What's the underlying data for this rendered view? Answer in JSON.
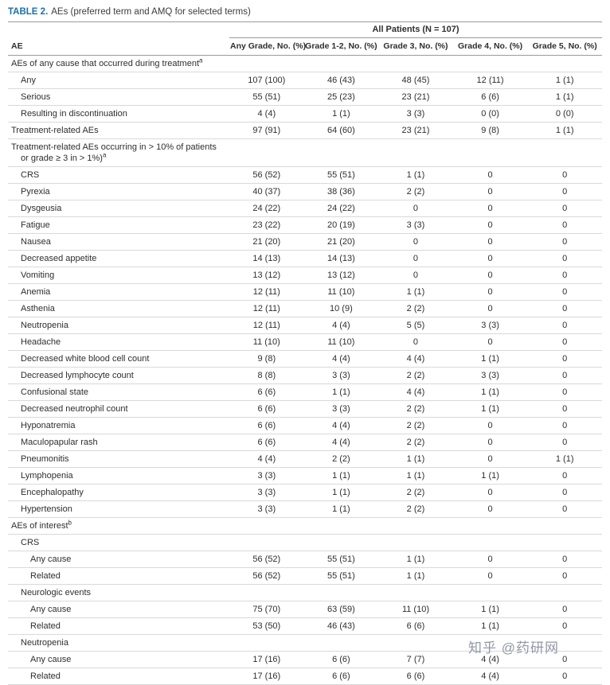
{
  "title": {
    "label": "TABLE 2.",
    "caption": "AEs (preferred term and AMQ for selected terms)"
  },
  "watermark": "知乎 @药研网",
  "table": {
    "group_header": "All Patients (N = 107)",
    "columns": [
      "AE",
      "Any Grade, No. (%)",
      "Grade 1-2, No. (%)",
      "Grade 3, No. (%)",
      "Grade 4, No. (%)",
      "Grade 5, No. (%)"
    ],
    "rows": [
      {
        "type": "section",
        "indent": 0,
        "lines": [
          "AEs of any cause that occurred during treatment"
        ],
        "sup": "a"
      },
      {
        "type": "data",
        "indent": 1,
        "label": "Any",
        "values": [
          "107 (100)",
          "46 (43)",
          "48 (45)",
          "12 (11)",
          "1 (1)"
        ]
      },
      {
        "type": "data",
        "indent": 1,
        "label": "Serious",
        "values": [
          "55 (51)",
          "25 (23)",
          "23 (21)",
          "6 (6)",
          "1 (1)"
        ]
      },
      {
        "type": "data",
        "indent": 1,
        "label": "Resulting in discontinuation",
        "values": [
          "4 (4)",
          "1 (1)",
          "3 (3)",
          "0 (0)",
          "0 (0)"
        ]
      },
      {
        "type": "data",
        "indent": 0,
        "label": "Treatment-related AEs",
        "values": [
          "97 (91)",
          "64 (60)",
          "23 (21)",
          "9 (8)",
          "1 (1)"
        ]
      },
      {
        "type": "section",
        "indent": 0,
        "lines": [
          "Treatment-related AEs occurring in > 10% of patients",
          "or grade ≥ 3 in > 1%)"
        ],
        "sup": "a"
      },
      {
        "type": "data",
        "indent": 1,
        "label": "CRS",
        "values": [
          "56 (52)",
          "55 (51)",
          "1 (1)",
          "0",
          "0"
        ]
      },
      {
        "type": "data",
        "indent": 1,
        "label": "Pyrexia",
        "values": [
          "40 (37)",
          "38 (36)",
          "2 (2)",
          "0",
          "0"
        ]
      },
      {
        "type": "data",
        "indent": 1,
        "label": "Dysgeusia",
        "values": [
          "24 (22)",
          "24 (22)",
          "0",
          "0",
          "0"
        ]
      },
      {
        "type": "data",
        "indent": 1,
        "label": "Fatigue",
        "values": [
          "23 (22)",
          "20 (19)",
          "3 (3)",
          "0",
          "0"
        ]
      },
      {
        "type": "data",
        "indent": 1,
        "label": "Nausea",
        "values": [
          "21 (20)",
          "21 (20)",
          "0",
          "0",
          "0"
        ]
      },
      {
        "type": "data",
        "indent": 1,
        "label": "Decreased appetite",
        "values": [
          "14 (13)",
          "14 (13)",
          "0",
          "0",
          "0"
        ]
      },
      {
        "type": "data",
        "indent": 1,
        "label": "Vomiting",
        "values": [
          "13 (12)",
          "13 (12)",
          "0",
          "0",
          "0"
        ]
      },
      {
        "type": "data",
        "indent": 1,
        "label": "Anemia",
        "values": [
          "12 (11)",
          "11 (10)",
          "1 (1)",
          "0",
          "0"
        ]
      },
      {
        "type": "data",
        "indent": 1,
        "label": "Asthenia",
        "values": [
          "12 (11)",
          "10 (9)",
          "2 (2)",
          "0",
          "0"
        ]
      },
      {
        "type": "data",
        "indent": 1,
        "label": "Neutropenia",
        "values": [
          "12 (11)",
          "4 (4)",
          "5 (5)",
          "3 (3)",
          "0"
        ]
      },
      {
        "type": "data",
        "indent": 1,
        "label": "Headache",
        "values": [
          "11 (10)",
          "11 (10)",
          "0",
          "0",
          "0"
        ]
      },
      {
        "type": "data",
        "indent": 1,
        "label": "Decreased white blood cell count",
        "values": [
          "9 (8)",
          "4 (4)",
          "4 (4)",
          "1 (1)",
          "0"
        ]
      },
      {
        "type": "data",
        "indent": 1,
        "label": "Decreased lymphocyte count",
        "values": [
          "8 (8)",
          "3 (3)",
          "2 (2)",
          "3 (3)",
          "0"
        ]
      },
      {
        "type": "data",
        "indent": 1,
        "label": "Confusional state",
        "values": [
          "6 (6)",
          "1 (1)",
          "4 (4)",
          "1 (1)",
          "0"
        ]
      },
      {
        "type": "data",
        "indent": 1,
        "label": "Decreased neutrophil count",
        "values": [
          "6 (6)",
          "3 (3)",
          "2 (2)",
          "1 (1)",
          "0"
        ]
      },
      {
        "type": "data",
        "indent": 1,
        "label": "Hyponatremia",
        "values": [
          "6 (6)",
          "4 (4)",
          "2 (2)",
          "0",
          "0"
        ]
      },
      {
        "type": "data",
        "indent": 1,
        "label": "Maculopapular rash",
        "values": [
          "6 (6)",
          "4 (4)",
          "2 (2)",
          "0",
          "0"
        ]
      },
      {
        "type": "data",
        "indent": 1,
        "label": "Pneumonitis",
        "values": [
          "4 (4)",
          "2 (2)",
          "1 (1)",
          "0",
          "1 (1)"
        ]
      },
      {
        "type": "data",
        "indent": 1,
        "label": "Lymphopenia",
        "values": [
          "3 (3)",
          "1 (1)",
          "1 (1)",
          "1 (1)",
          "0"
        ]
      },
      {
        "type": "data",
        "indent": 1,
        "label": "Encephalopathy",
        "values": [
          "3 (3)",
          "1 (1)",
          "2 (2)",
          "0",
          "0"
        ]
      },
      {
        "type": "data",
        "indent": 1,
        "label": "Hypertension",
        "values": [
          "3 (3)",
          "1 (1)",
          "2 (2)",
          "0",
          "0"
        ]
      },
      {
        "type": "section",
        "indent": 0,
        "lines": [
          "AEs of interest"
        ],
        "sup": "b"
      },
      {
        "type": "subheader",
        "indent": 1,
        "label": "CRS"
      },
      {
        "type": "data",
        "indent": 2,
        "label": "Any cause",
        "values": [
          "56 (52)",
          "55 (51)",
          "1 (1)",
          "0",
          "0"
        ]
      },
      {
        "type": "data",
        "indent": 2,
        "label": "Related",
        "values": [
          "56 (52)",
          "55 (51)",
          "1 (1)",
          "0",
          "0"
        ]
      },
      {
        "type": "subheader",
        "indent": 1,
        "label": "Neurologic events"
      },
      {
        "type": "data",
        "indent": 2,
        "label": "Any cause",
        "values": [
          "75 (70)",
          "63 (59)",
          "11 (10)",
          "1 (1)",
          "0"
        ]
      },
      {
        "type": "data",
        "indent": 2,
        "label": "Related",
        "values": [
          "53 (50)",
          "46 (43)",
          "6 (6)",
          "1 (1)",
          "0"
        ]
      },
      {
        "type": "subheader",
        "indent": 1,
        "label": "Neutropenia"
      },
      {
        "type": "data",
        "indent": 2,
        "label": "Any cause",
        "values": [
          "17 (16)",
          "6 (6)",
          "7 (7)",
          "4 (4)",
          "0"
        ]
      },
      {
        "type": "data",
        "indent": 2,
        "label": "Related",
        "values": [
          "17 (16)",
          "6 (6)",
          "6 (6)",
          "4 (4)",
          "0"
        ]
      }
    ]
  }
}
